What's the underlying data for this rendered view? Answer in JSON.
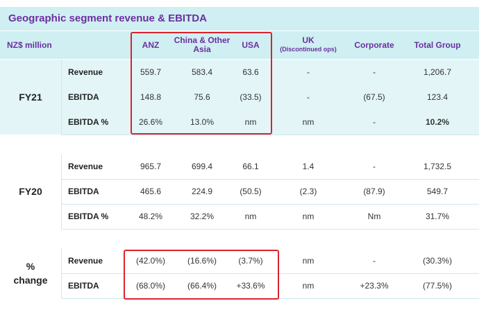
{
  "title": "Geographic segment revenue & EBITDA",
  "headers": {
    "unit": "NZ$ million",
    "anz": "ANZ",
    "china": "China & Other Asia",
    "usa": "USA",
    "uk": "UK",
    "uk_sub": "(Discontinued ops)",
    "corporate": "Corporate",
    "total": "Total Group"
  },
  "fy21": {
    "label": "FY21",
    "rows": [
      {
        "label": "Revenue",
        "anz": "559.7",
        "china": "583.4",
        "usa": "63.6",
        "uk": "-",
        "corporate": "-",
        "total": "1,206.7"
      },
      {
        "label": "EBITDA",
        "anz": "148.8",
        "china": "75.6",
        "usa": "(33.5)",
        "uk": "-",
        "corporate": "(67.5)",
        "total": "123.4"
      },
      {
        "label": "EBITDA %",
        "anz": "26.6%",
        "china": "13.0%",
        "usa": "nm",
        "uk": "nm",
        "corporate": "-",
        "total": "10.2%"
      }
    ]
  },
  "fy20": {
    "label": "FY20",
    "rows": [
      {
        "label": "Revenue",
        "anz": "965.7",
        "china": "699.4",
        "usa": "66.1",
        "uk": "1.4",
        "corporate": "-",
        "total": "1,732.5"
      },
      {
        "label": "EBITDA",
        "anz": "465.6",
        "china": "224.9",
        "usa": "(50.5)",
        "uk": "(2.3)",
        "corporate": "(87.9)",
        "total": "549.7"
      },
      {
        "label": "EBITDA %",
        "anz": "48.2%",
        "china": "32.2%",
        "usa": "nm",
        "uk": "nm",
        "corporate": "Nm",
        "total": "31.7%"
      }
    ]
  },
  "change": {
    "label_line1": "%",
    "label_line2": "change",
    "rows": [
      {
        "label": "Revenue",
        "anz": "(42.0%)",
        "china": "(16.6%)",
        "usa": "(3.7%)",
        "uk": "nm",
        "corporate": "-",
        "total": "(30.3%)"
      },
      {
        "label": "EBITDA",
        "anz": "(68.0%)",
        "china": "(66.4%)",
        "usa": "+33.6%",
        "uk": "nm",
        "corporate": "+23.3%",
        "total": "(77.5%)"
      }
    ]
  },
  "colors": {
    "header_bg": "#cfeff2",
    "header_text": "#6b2fa0",
    "highlight_box": "#d9232d"
  }
}
